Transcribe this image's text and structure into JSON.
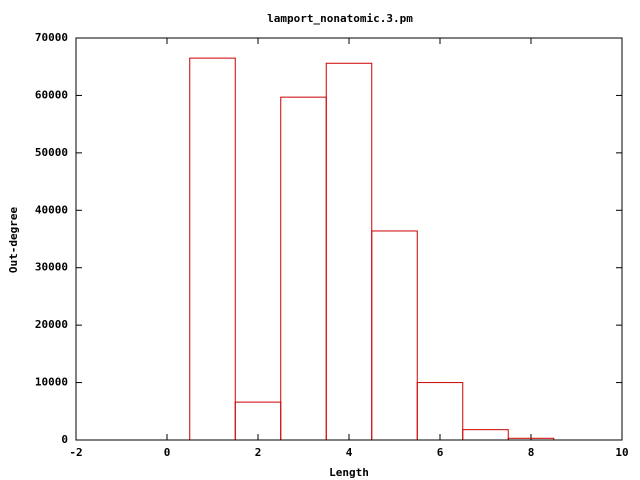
{
  "chart_data": {
    "type": "bar",
    "title": "lamport_nonatomic.3.pm",
    "xlabel": "Length",
    "ylabel": "Out-degree",
    "x": [
      1,
      2,
      3,
      4,
      5,
      6,
      7,
      8
    ],
    "values": [
      66500,
      6600,
      59700,
      65600,
      36400,
      10000,
      1800,
      300
    ],
    "color": "#cc0000",
    "xlim": [
      -2,
      10
    ],
    "xticks": [
      -2,
      0,
      2,
      4,
      6,
      8,
      10
    ],
    "ylim": [
      0,
      70000
    ],
    "yticks": [
      0,
      10000,
      20000,
      30000,
      40000,
      50000,
      60000,
      70000
    ]
  }
}
